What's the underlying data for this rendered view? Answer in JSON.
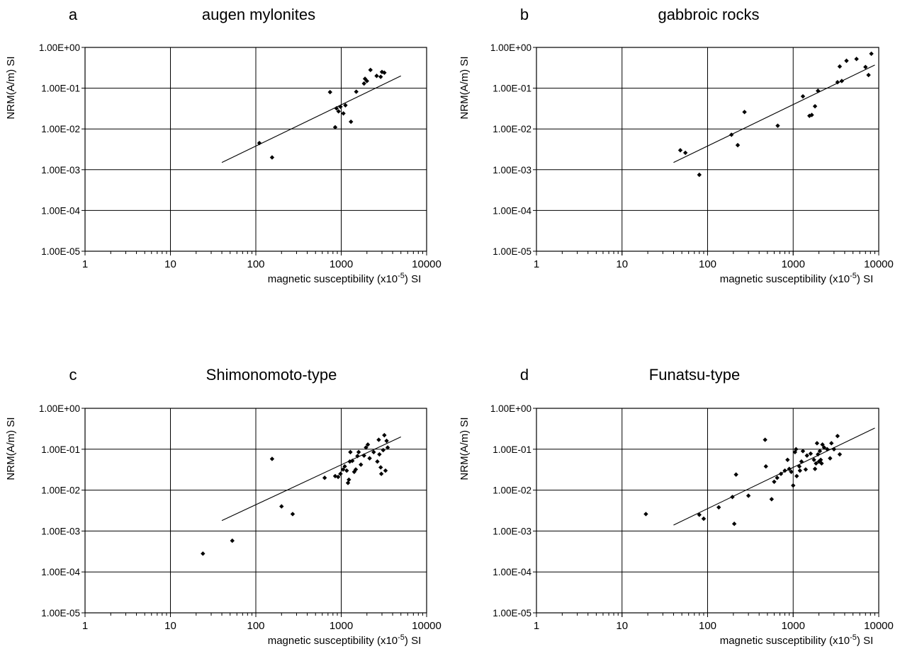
{
  "chart_data": [
    {
      "panel": "a",
      "title": "augen mylonites",
      "type": "scatter",
      "xlabel": "magnetic susceptibility (x10",
      "xlabel_exponent": "-5",
      "xlabel_suffix": ") SI",
      "ylabel": "NRM(A/m) SI",
      "xscale": "log",
      "yscale": "log",
      "xlim": [
        1,
        10000
      ],
      "ylim": [
        1e-05,
        1
      ],
      "x_ticks": [
        "1",
        "10",
        "100",
        "1000",
        "10000"
      ],
      "y_ticks": [
        "1.00E-05",
        "1.00E-04",
        "1.00E-03",
        "1.00E-02",
        "1.00E-01",
        "1.00E+00"
      ],
      "grid": true,
      "series": [
        {
          "points": [
            [
              110,
              0.0045
            ],
            [
              155,
              0.002
            ],
            [
              740,
              0.08
            ],
            [
              850,
              0.011
            ],
            [
              880,
              0.032
            ],
            [
              930,
              0.027
            ],
            [
              980,
              0.035
            ],
            [
              1060,
              0.024
            ],
            [
              1120,
              0.038
            ],
            [
              1300,
              0.015
            ],
            [
              1500,
              0.082
            ],
            [
              1850,
              0.13
            ],
            [
              1900,
              0.17
            ],
            [
              2000,
              0.15
            ],
            [
              2200,
              0.28
            ],
            [
              2600,
              0.2
            ],
            [
              2900,
              0.19
            ],
            [
              3000,
              0.25
            ],
            [
              3200,
              0.24
            ]
          ],
          "trendline": [
            [
              40,
              0.0015
            ],
            [
              5000,
              0.2
            ]
          ]
        }
      ]
    },
    {
      "panel": "b",
      "title": "gabbroic rocks",
      "type": "scatter",
      "xlabel": "magnetic susceptibility (x10",
      "xlabel_exponent": "-5",
      "xlabel_suffix": ") SI",
      "ylabel": "NRM(A/m) SI",
      "xscale": "log",
      "yscale": "log",
      "xlim": [
        1,
        10000
      ],
      "ylim": [
        1e-05,
        1
      ],
      "x_ticks": [
        "1",
        "10",
        "100",
        "1000",
        "10000"
      ],
      "y_ticks": [
        "1.00E-05",
        "1.00E-04",
        "1.00E-03",
        "1.00E-02",
        "1.00E-01",
        "1.00E+00"
      ],
      "grid": true,
      "series": [
        {
          "points": [
            [
              48,
              0.003
            ],
            [
              55,
              0.0026
            ],
            [
              80,
              0.00075
            ],
            [
              190,
              0.0072
            ],
            [
              225,
              0.004
            ],
            [
              270,
              0.026
            ],
            [
              660,
              0.012
            ],
            [
              1300,
              0.063
            ],
            [
              1550,
              0.021
            ],
            [
              1650,
              0.022
            ],
            [
              1800,
              0.036
            ],
            [
              1950,
              0.086
            ],
            [
              3300,
              0.14
            ],
            [
              3500,
              0.34
            ],
            [
              3700,
              0.15
            ],
            [
              4200,
              0.47
            ],
            [
              5500,
              0.52
            ],
            [
              7000,
              0.33
            ],
            [
              7600,
              0.21
            ],
            [
              8200,
              0.7
            ]
          ],
          "trendline": [
            [
              40,
              0.0015
            ],
            [
              9000,
              0.37
            ]
          ]
        }
      ]
    },
    {
      "panel": "c",
      "title": "Shimonomoto-type",
      "type": "scatter",
      "xlabel": "magnetic susceptibility (x10",
      "xlabel_exponent": "-5",
      "xlabel_suffix": ") SI",
      "ylabel": "NRM(A/m) SI",
      "xscale": "log",
      "yscale": "log",
      "xlim": [
        1,
        10000
      ],
      "ylim": [
        1e-05,
        1
      ],
      "x_ticks": [
        "1",
        "10",
        "100",
        "1000",
        "10000"
      ],
      "y_ticks": [
        "1.00E-05",
        "1.00E-04",
        "1.00E-03",
        "1.00E-02",
        "1.00E-01",
        "1.00E+00"
      ],
      "grid": true,
      "series": [
        {
          "points": [
            [
              24,
              0.00028
            ],
            [
              53,
              0.00058
            ],
            [
              155,
              0.058
            ],
            [
              200,
              0.004
            ],
            [
              270,
              0.0026
            ],
            [
              640,
              0.02
            ],
            [
              850,
              0.022
            ],
            [
              920,
              0.021
            ],
            [
              980,
              0.025
            ],
            [
              1050,
              0.032
            ],
            [
              1100,
              0.038
            ],
            [
              1160,
              0.03
            ],
            [
              1200,
              0.015
            ],
            [
              1230,
              0.018
            ],
            [
              1260,
              0.05
            ],
            [
              1280,
              0.085
            ],
            [
              1350,
              0.052
            ],
            [
              1420,
              0.028
            ],
            [
              1480,
              0.032
            ],
            [
              1550,
              0.068
            ],
            [
              1600,
              0.085
            ],
            [
              1700,
              0.042
            ],
            [
              1850,
              0.07
            ],
            [
              1950,
              0.11
            ],
            [
              2050,
              0.13
            ],
            [
              2150,
              0.06
            ],
            [
              2400,
              0.085
            ],
            [
              2650,
              0.05
            ],
            [
              2750,
              0.17
            ],
            [
              2800,
              0.075
            ],
            [
              2900,
              0.036
            ],
            [
              2950,
              0.025
            ],
            [
              3100,
              0.095
            ],
            [
              3200,
              0.22
            ],
            [
              3300,
              0.03
            ],
            [
              3400,
              0.16
            ],
            [
              3500,
              0.11
            ]
          ],
          "trendline": [
            [
              40,
              0.0018
            ],
            [
              5000,
              0.2
            ]
          ]
        }
      ]
    },
    {
      "panel": "d",
      "title": "Funatsu-type",
      "type": "scatter",
      "xlabel": "magnetic susceptibility (x10",
      "xlabel_exponent": "-5",
      "xlabel_suffix": ") SI",
      "ylabel": "NRM(A/m) SI",
      "xscale": "log",
      "yscale": "log",
      "xlim": [
        1,
        10000
      ],
      "ylim": [
        1e-05,
        1
      ],
      "x_ticks": [
        "1",
        "10",
        "100",
        "1000",
        "10000"
      ],
      "y_ticks": [
        "1.00E-05",
        "1.00E-04",
        "1.00E-03",
        "1.00E-02",
        "1.00E-01",
        "1.00E+00"
      ],
      "grid": true,
      "series": [
        {
          "points": [
            [
              19,
              0.0026
            ],
            [
              80,
              0.0025
            ],
            [
              90,
              0.002
            ],
            [
              135,
              0.0038
            ],
            [
              195,
              0.0068
            ],
            [
              205,
              0.0015
            ],
            [
              215,
              0.024
            ],
            [
              300,
              0.0073
            ],
            [
              470,
              0.17
            ],
            [
              480,
              0.038
            ],
            [
              560,
              0.006
            ],
            [
              600,
              0.016
            ],
            [
              650,
              0.02
            ],
            [
              720,
              0.025
            ],
            [
              800,
              0.03
            ],
            [
              860,
              0.055
            ],
            [
              900,
              0.033
            ],
            [
              950,
              0.028
            ],
            [
              1000,
              0.013
            ],
            [
              1050,
              0.085
            ],
            [
              1080,
              0.1
            ],
            [
              1100,
              0.022
            ],
            [
              1180,
              0.038
            ],
            [
              1200,
              0.03
            ],
            [
              1250,
              0.05
            ],
            [
              1300,
              0.09
            ],
            [
              1400,
              0.032
            ],
            [
              1450,
              0.07
            ],
            [
              1600,
              0.078
            ],
            [
              1750,
              0.055
            ],
            [
              1800,
              0.033
            ],
            [
              1850,
              0.045
            ],
            [
              1900,
              0.14
            ],
            [
              1950,
              0.075
            ],
            [
              2000,
              0.05
            ],
            [
              2050,
              0.09
            ],
            [
              2100,
              0.055
            ],
            [
              2150,
              0.045
            ],
            [
              2200,
              0.13
            ],
            [
              2300,
              0.11
            ],
            [
              2500,
              0.1
            ],
            [
              2700,
              0.06
            ],
            [
              2800,
              0.14
            ],
            [
              3000,
              0.1
            ],
            [
              3300,
              0.21
            ],
            [
              3500,
              0.075
            ]
          ],
          "trendline": [
            [
              40,
              0.0014
            ],
            [
              9000,
              0.33
            ]
          ]
        }
      ]
    }
  ]
}
